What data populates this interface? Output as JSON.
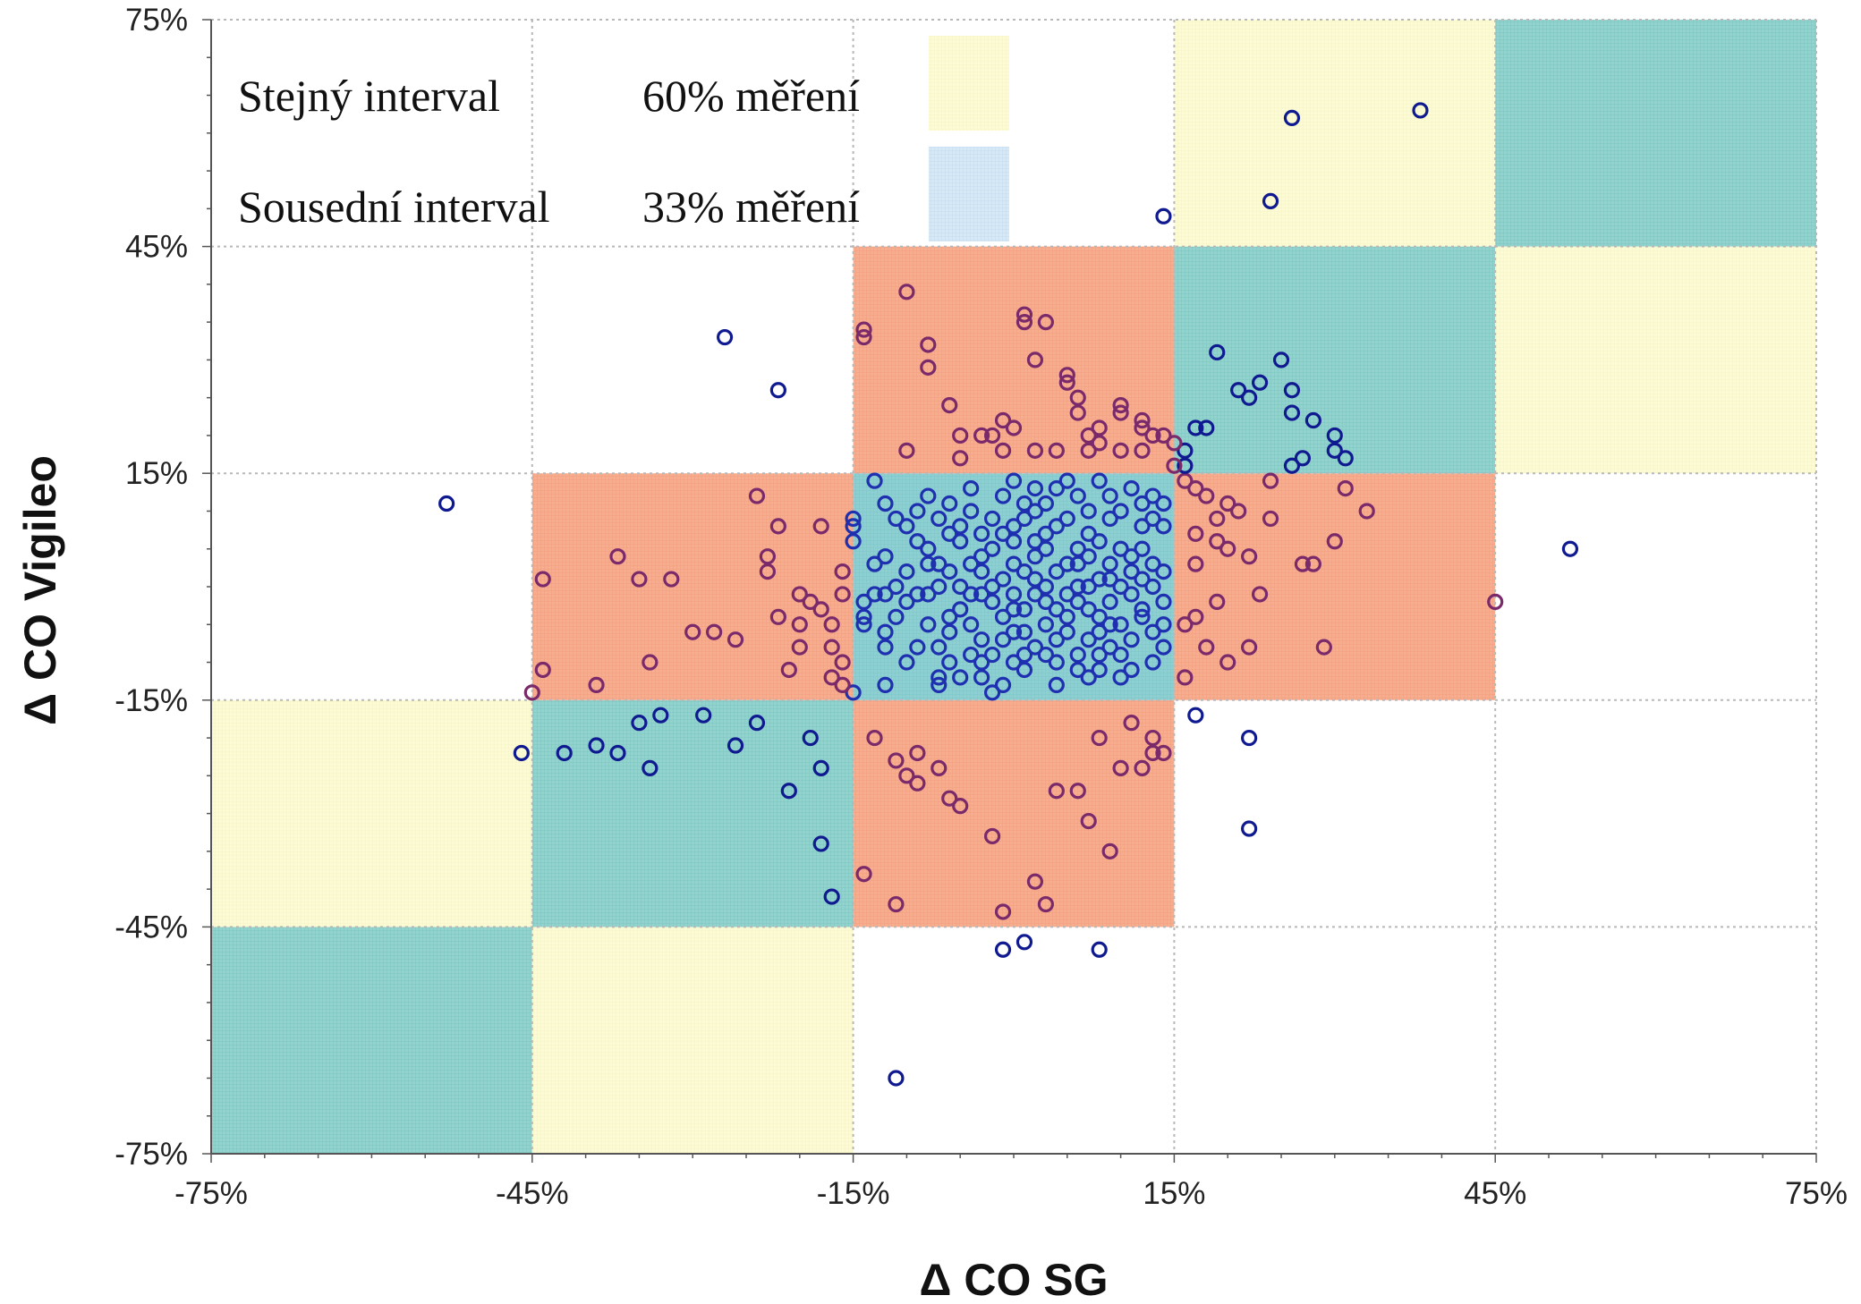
{
  "chart_data": {
    "type": "scatter",
    "xlabel": "Δ CO SG",
    "ylabel": "Δ CO Vigileo",
    "xlim": [
      -75,
      75
    ],
    "ylim": [
      -75,
      75
    ],
    "x_ticks": [
      -75,
      -45,
      -15,
      15,
      45,
      75
    ],
    "y_ticks": [
      -75,
      -45,
      -15,
      15,
      45,
      75
    ],
    "x_tick_labels": [
      "-75%",
      "-45%",
      "-15%",
      "15%",
      "45%",
      "75%"
    ],
    "y_tick_labels": [
      "-75%",
      "-45%",
      "-15%",
      "15%",
      "45%",
      "75%"
    ],
    "grid": true,
    "legend": {
      "position": "top-left",
      "entries": [
        {
          "label": "Stejný interval",
          "value": "60% měření",
          "color": "#fafad0"
        },
        {
          "label": "Sousední interval",
          "value": "33% měření",
          "color": "#d2e4f2"
        }
      ]
    },
    "colors": {
      "same_interval": "#fbf9cf",
      "adjacent_interval": "#8ed2cb",
      "center_cell": "#8ccbd0",
      "neighbor_cell": "#f4a98c",
      "point_inner": "#1e30b0",
      "point_outer": "#101a90",
      "point_on_salmon": "#7a2a6a"
    },
    "regions": [
      {
        "x": [
          -75,
          -45
        ],
        "y": [
          -75,
          -45
        ],
        "kind": "adjacent"
      },
      {
        "x": [
          -45,
          -15
        ],
        "y": [
          -75,
          -45
        ],
        "kind": "same"
      },
      {
        "x": [
          -75,
          -45
        ],
        "y": [
          -45,
          -15
        ],
        "kind": "same"
      },
      {
        "x": [
          -45,
          -15
        ],
        "y": [
          -45,
          -15
        ],
        "kind": "adjacent"
      },
      {
        "x": [
          -15,
          15
        ],
        "y": [
          -45,
          -15
        ],
        "kind": "neighbor"
      },
      {
        "x": [
          -45,
          -15
        ],
        "y": [
          -15,
          15
        ],
        "kind": "neighbor"
      },
      {
        "x": [
          -15,
          15
        ],
        "y": [
          -15,
          15
        ],
        "kind": "center"
      },
      {
        "x": [
          15,
          45
        ],
        "y": [
          -15,
          15
        ],
        "kind": "neighbor"
      },
      {
        "x": [
          -15,
          15
        ],
        "y": [
          15,
          45
        ],
        "kind": "neighbor"
      },
      {
        "x": [
          15,
          45
        ],
        "y": [
          15,
          45
        ],
        "kind": "adjacent"
      },
      {
        "x": [
          45,
          75
        ],
        "y": [
          15,
          45
        ],
        "kind": "same"
      },
      {
        "x": [
          15,
          45
        ],
        "y": [
          45,
          75
        ],
        "kind": "same"
      },
      {
        "x": [
          45,
          75
        ],
        "y": [
          45,
          75
        ],
        "kind": "adjacent"
      }
    ],
    "points": [
      [
        -27,
        33
      ],
      [
        -22,
        26
      ],
      [
        -53,
        11
      ],
      [
        -46,
        -22
      ],
      [
        -14,
        34
      ],
      [
        -14,
        33
      ],
      [
        -13,
        14
      ],
      [
        -10,
        39
      ],
      [
        -8,
        32
      ],
      [
        -8,
        29
      ],
      [
        -6,
        24
      ],
      [
        -5,
        20
      ],
      [
        -3,
        20
      ],
      [
        -2,
        20
      ],
      [
        -1,
        22
      ],
      [
        0,
        21
      ],
      [
        1,
        36
      ],
      [
        1,
        35
      ],
      [
        2,
        30
      ],
      [
        3,
        35
      ],
      [
        5,
        28
      ],
      [
        5,
        27
      ],
      [
        6,
        25
      ],
      [
        6,
        23
      ],
      [
        7,
        20
      ],
      [
        7,
        18
      ],
      [
        8,
        19
      ],
      [
        8,
        21
      ],
      [
        10,
        24
      ],
      [
        10,
        23
      ],
      [
        12,
        22
      ],
      [
        12,
        21
      ],
      [
        13,
        20
      ],
      [
        14,
        20
      ],
      [
        -1,
        18
      ],
      [
        2,
        18
      ],
      [
        4,
        18
      ],
      [
        10,
        18
      ],
      [
        12,
        18
      ],
      [
        -10,
        18
      ],
      [
        -5,
        17
      ],
      [
        -44,
        1
      ],
      [
        -44,
        -11
      ],
      [
        -39,
        -13
      ],
      [
        -37,
        4
      ],
      [
        -35,
        1
      ],
      [
        -34,
        -10
      ],
      [
        -32,
        1
      ],
      [
        -30,
        -6
      ],
      [
        -28,
        -6
      ],
      [
        -26,
        -7
      ],
      [
        -24,
        12
      ],
      [
        -23,
        2
      ],
      [
        -23,
        4
      ],
      [
        -22,
        -4
      ],
      [
        -22,
        8
      ],
      [
        -20,
        -5
      ],
      [
        -20,
        -8
      ],
      [
        -18,
        8
      ],
      [
        -17,
        -5
      ],
      [
        -17,
        -8
      ],
      [
        -16,
        -1
      ],
      [
        -15,
        6
      ],
      [
        -15,
        8
      ],
      [
        -15,
        9
      ],
      [
        -16,
        -10
      ],
      [
        -17,
        -12
      ],
      [
        -16,
        2
      ],
      [
        -14,
        -4
      ],
      [
        -15,
        -14
      ],
      [
        16,
        14
      ],
      [
        17,
        13
      ],
      [
        17,
        7
      ],
      [
        18,
        12
      ],
      [
        19,
        9
      ],
      [
        19,
        6
      ],
      [
        20,
        5
      ],
      [
        20,
        11
      ],
      [
        21,
        10
      ],
      [
        22,
        4
      ],
      [
        24,
        14
      ],
      [
        24,
        9
      ],
      [
        26,
        16
      ],
      [
        27,
        3
      ],
      [
        28,
        3
      ],
      [
        29,
        -8
      ],
      [
        30,
        6
      ],
      [
        31,
        13
      ],
      [
        33,
        10
      ],
      [
        45,
        -2
      ],
      [
        17,
        3
      ],
      [
        19,
        -2
      ],
      [
        16,
        -5
      ],
      [
        18,
        -8
      ],
      [
        20,
        -10
      ],
      [
        22,
        -8
      ],
      [
        23,
        -1
      ],
      [
        16,
        -12
      ],
      [
        17,
        -4
      ],
      [
        -13,
        -20
      ],
      [
        -11,
        -23
      ],
      [
        -10,
        -25
      ],
      [
        -9,
        -22
      ],
      [
        -7,
        -24
      ],
      [
        -6,
        -28
      ],
      [
        -5,
        -29
      ],
      [
        -2,
        -33
      ],
      [
        -1,
        -43
      ],
      [
        3,
        -42
      ],
      [
        2,
        -39
      ],
      [
        4,
        -27
      ],
      [
        6,
        -27
      ],
      [
        7,
        -31
      ],
      [
        9,
        -35
      ],
      [
        10,
        -24
      ],
      [
        12,
        -24
      ],
      [
        13,
        -20
      ],
      [
        13,
        -22
      ],
      [
        11,
        -18
      ],
      [
        8,
        -20
      ],
      [
        14,
        -22
      ],
      [
        -11,
        -42
      ],
      [
        -9,
        -26
      ],
      [
        -12,
        -13
      ],
      [
        -16,
        -13
      ],
      [
        -12,
        -1
      ],
      [
        -20,
        -1
      ],
      [
        -19,
        -2
      ],
      [
        -18,
        -3
      ],
      [
        -14,
        -2
      ],
      [
        -42,
        -22
      ],
      [
        -39,
        -21
      ],
      [
        -37,
        -22
      ],
      [
        -35,
        -18
      ],
      [
        -34,
        -24
      ],
      [
        -33,
        -17
      ],
      [
        -29,
        -17
      ],
      [
        -26,
        -21
      ],
      [
        -24,
        -18
      ],
      [
        -21,
        -27
      ],
      [
        -19,
        -20
      ],
      [
        -18,
        -24
      ],
      [
        -18,
        -34
      ],
      [
        -17,
        -41
      ],
      [
        -14,
        -38
      ],
      [
        -45,
        -14
      ],
      [
        -21,
        -11
      ],
      [
        16,
        16
      ],
      [
        16,
        18
      ],
      [
        17,
        21
      ],
      [
        18,
        21
      ],
      [
        19,
        31
      ],
      [
        21,
        26
      ],
      [
        22,
        25
      ],
      [
        23,
        27
      ],
      [
        25,
        30
      ],
      [
        26,
        26
      ],
      [
        26,
        23
      ],
      [
        28,
        22
      ],
      [
        27,
        17
      ],
      [
        30,
        20
      ],
      [
        31,
        17
      ],
      [
        30,
        18
      ],
      [
        15,
        16
      ],
      [
        15,
        19
      ],
      [
        -1,
        -48
      ],
      [
        1,
        -47
      ],
      [
        8,
        -48
      ],
      [
        -11,
        -65
      ],
      [
        14,
        49
      ],
      [
        24,
        51
      ],
      [
        26,
        62
      ],
      [
        38,
        63
      ],
      [
        52,
        5
      ],
      [
        17,
        -17
      ],
      [
        22,
        -20
      ],
      [
        22,
        -32
      ],
      [
        -8,
        5
      ],
      [
        -8,
        3
      ],
      [
        -7,
        0
      ],
      [
        -6,
        -4
      ],
      [
        -6,
        2
      ],
      [
        -5,
        0
      ],
      [
        -5,
        6
      ],
      [
        -4,
        -5
      ],
      [
        -4,
        3
      ],
      [
        -3,
        -7
      ],
      [
        -3,
        -1
      ],
      [
        -3,
        4
      ],
      [
        -2,
        -2
      ],
      [
        -2,
        5
      ],
      [
        -1,
        -4
      ],
      [
        -1,
        1
      ],
      [
        0,
        -6
      ],
      [
        0,
        -1
      ],
      [
        0,
        3
      ],
      [
        0,
        6
      ],
      [
        1,
        -3
      ],
      [
        1,
        2
      ],
      [
        1,
        9
      ],
      [
        2,
        -8
      ],
      [
        2,
        -1
      ],
      [
        2,
        4
      ],
      [
        3,
        -5
      ],
      [
        3,
        0
      ],
      [
        3,
        7
      ],
      [
        4,
        -3
      ],
      [
        4,
        2
      ],
      [
        4,
        8
      ],
      [
        5,
        -6
      ],
      [
        5,
        -1
      ],
      [
        5,
        3
      ],
      [
        6,
        -2
      ],
      [
        6,
        5
      ],
      [
        7,
        -7
      ],
      [
        7,
        0
      ],
      [
        7,
        4
      ],
      [
        8,
        -4
      ],
      [
        8,
        1
      ],
      [
        8,
        6
      ],
      [
        9,
        -2
      ],
      [
        9,
        3
      ],
      [
        10,
        -5
      ],
      [
        10,
        0
      ],
      [
        10,
        5
      ],
      [
        11,
        -1
      ],
      [
        11,
        2
      ],
      [
        12,
        -3
      ],
      [
        12,
        1
      ],
      [
        13,
        -6
      ],
      [
        13,
        0
      ],
      [
        14,
        -2
      ],
      [
        14,
        2
      ],
      [
        -10,
        -2
      ],
      [
        -10,
        2
      ],
      [
        -9,
        -8
      ],
      [
        -9,
        6
      ],
      [
        -11,
        -4
      ],
      [
        -12,
        -6
      ],
      [
        -7,
        -8
      ],
      [
        -6,
        -10
      ],
      [
        -4,
        -9
      ],
      [
        0,
        -10
      ],
      [
        3,
        -9
      ],
      [
        6,
        -9
      ],
      [
        9,
        -8
      ],
      [
        11,
        -7
      ],
      [
        -9,
        10
      ],
      [
        -7,
        9
      ],
      [
        -6,
        11
      ],
      [
        -4,
        10
      ],
      [
        -2,
        9
      ],
      [
        -1,
        12
      ],
      [
        1,
        11
      ],
      [
        3,
        11
      ],
      [
        4,
        13
      ],
      [
        6,
        12
      ],
      [
        7,
        10
      ],
      [
        9,
        12
      ],
      [
        10,
        10
      ],
      [
        12,
        11
      ],
      [
        13,
        9
      ],
      [
        14,
        8
      ],
      [
        -2,
        -14
      ],
      [
        -1,
        -13
      ],
      [
        -7,
        -12
      ],
      [
        -3,
        -12
      ],
      [
        4,
        -13
      ],
      [
        7,
        -12
      ],
      [
        8,
        -11
      ],
      [
        -12,
        4
      ],
      [
        -8,
        -1
      ],
      [
        -5,
        -3
      ],
      [
        -3,
        2
      ],
      [
        -1,
        7
      ],
      [
        1,
        -6
      ],
      [
        2,
        6
      ],
      [
        5,
        9
      ],
      [
        7,
        7
      ],
      [
        9,
        -5
      ],
      [
        11,
        4
      ],
      [
        12,
        -4
      ],
      [
        14,
        -5
      ],
      [
        -10,
        8
      ],
      [
        -8,
        12
      ],
      [
        -4,
        13
      ],
      [
        0,
        14
      ],
      [
        2,
        13
      ],
      [
        5,
        14
      ],
      [
        8,
        14
      ],
      [
        11,
        13
      ],
      [
        13,
        12
      ],
      [
        -6,
        -6
      ],
      [
        -2,
        0
      ],
      [
        0,
        -3
      ],
      [
        3,
        -2
      ],
      [
        6,
        0
      ],
      [
        9,
        1
      ],
      [
        12,
        5
      ],
      [
        -11,
        0
      ],
      [
        -9,
        -1
      ],
      [
        -7,
        3
      ],
      [
        -5,
        8
      ],
      [
        -3,
        -10
      ],
      [
        1,
        -9
      ],
      [
        4,
        -7
      ],
      [
        7,
        -3
      ],
      [
        10,
        -9
      ],
      [
        13,
        3
      ],
      [
        14,
        -8
      ],
      [
        -12,
        -8
      ],
      [
        -13,
        -1
      ],
      [
        -14,
        -5
      ],
      [
        -13,
        3
      ],
      [
        -11,
        9
      ],
      [
        -6,
        7
      ],
      [
        -1,
        -7
      ],
      [
        2,
        1
      ],
      [
        5,
        -4
      ],
      [
        8,
        -6
      ],
      [
        11,
        -11
      ],
      [
        14,
        11
      ],
      [
        -8,
        -5
      ],
      [
        -4,
        -1
      ],
      [
        0,
        8
      ],
      [
        3,
        5
      ],
      [
        6,
        3
      ],
      [
        9,
        9
      ],
      [
        12,
        8
      ],
      [
        -10,
        -10
      ],
      [
        -5,
        -12
      ],
      [
        -2,
        -9
      ],
      [
        1,
        -11
      ],
      [
        4,
        -10
      ],
      [
        8,
        -9
      ],
      [
        13,
        -10
      ],
      [
        -12,
        11
      ],
      [
        -7,
        -13
      ],
      [
        -3,
        7
      ],
      [
        2,
        10
      ],
      [
        6,
        -11
      ],
      [
        10,
        -12
      ]
    ]
  }
}
